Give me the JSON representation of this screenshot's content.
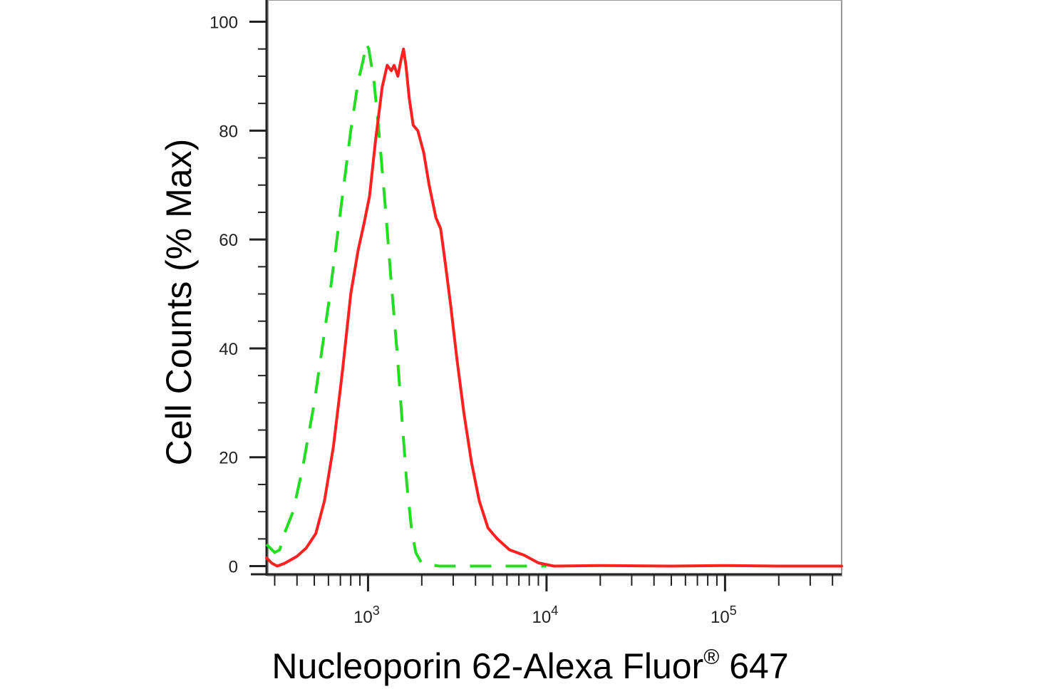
{
  "chart_data": {
    "type": "line",
    "xlabel": "Nucleoporin 62-Alexa Fluor",
    "xlabel_sup": "®",
    "xlabel_suffix": " 647",
    "ylabel": "Cell Counts (% Max)",
    "x_scale": "log",
    "xlim": [
      270,
      450000
    ],
    "ylim": [
      -1.5,
      104
    ],
    "y_ticks": [
      0,
      20,
      40,
      60,
      80,
      100
    ],
    "y_tick_labels": [
      "0",
      "20",
      "40",
      "60",
      "80",
      "100"
    ],
    "x_tick_labels": [
      {
        "base": "10",
        "exp": "3",
        "value": 1000
      },
      {
        "base": "10",
        "exp": "4",
        "value": 10000
      },
      {
        "base": "10",
        "exp": "5",
        "value": 100000
      }
    ],
    "grid": false,
    "legend": "none",
    "series": [
      {
        "style": "dashed",
        "color": "#22dd22",
        "points": [
          [
            270,
            4
          ],
          [
            300,
            2.5
          ],
          [
            320,
            3
          ],
          [
            340,
            6
          ],
          [
            380,
            10
          ],
          [
            430,
            18
          ],
          [
            500,
            30
          ],
          [
            600,
            48
          ],
          [
            700,
            65
          ],
          [
            800,
            80
          ],
          [
            880,
            89
          ],
          [
            940,
            93
          ],
          [
            980,
            96
          ],
          [
            1010,
            95
          ],
          [
            1080,
            89
          ],
          [
            1150,
            80
          ],
          [
            1250,
            66
          ],
          [
            1350,
            52
          ],
          [
            1450,
            40
          ],
          [
            1550,
            27
          ],
          [
            1650,
            15
          ],
          [
            1750,
            7
          ],
          [
            1850,
            2.5
          ],
          [
            2000,
            0.5
          ],
          [
            2500,
            0
          ],
          [
            4000,
            0
          ],
          [
            10000,
            0
          ]
        ]
      },
      {
        "style": "solid",
        "color": "#ff2020",
        "points": [
          [
            270,
            1.5
          ],
          [
            290,
            0.5
          ],
          [
            310,
            0
          ],
          [
            340,
            0.5
          ],
          [
            400,
            1.8
          ],
          [
            450,
            3.3
          ],
          [
            510,
            6
          ],
          [
            570,
            12
          ],
          [
            640,
            22
          ],
          [
            720,
            36
          ],
          [
            800,
            50
          ],
          [
            880,
            58
          ],
          [
            950,
            63
          ],
          [
            1020,
            68
          ],
          [
            1100,
            78
          ],
          [
            1200,
            88
          ],
          [
            1280,
            92
          ],
          [
            1350,
            91
          ],
          [
            1400,
            92
          ],
          [
            1470,
            90
          ],
          [
            1530,
            93
          ],
          [
            1580,
            95
          ],
          [
            1630,
            92
          ],
          [
            1700,
            86
          ],
          [
            1790,
            81
          ],
          [
            1900,
            80
          ],
          [
            2050,
            76
          ],
          [
            2200,
            70
          ],
          [
            2400,
            64
          ],
          [
            2550,
            62
          ],
          [
            2700,
            56
          ],
          [
            2900,
            48
          ],
          [
            3150,
            38
          ],
          [
            3450,
            28
          ],
          [
            3800,
            19
          ],
          [
            4200,
            12
          ],
          [
            4700,
            7
          ],
          [
            5300,
            5
          ],
          [
            6200,
            3
          ],
          [
            7500,
            2
          ],
          [
            9000,
            0.6
          ],
          [
            11000,
            0
          ],
          [
            20000,
            0.1
          ],
          [
            50000,
            0
          ],
          [
            100000,
            0.1
          ],
          [
            200000,
            0
          ],
          [
            450000,
            0
          ]
        ]
      }
    ]
  }
}
